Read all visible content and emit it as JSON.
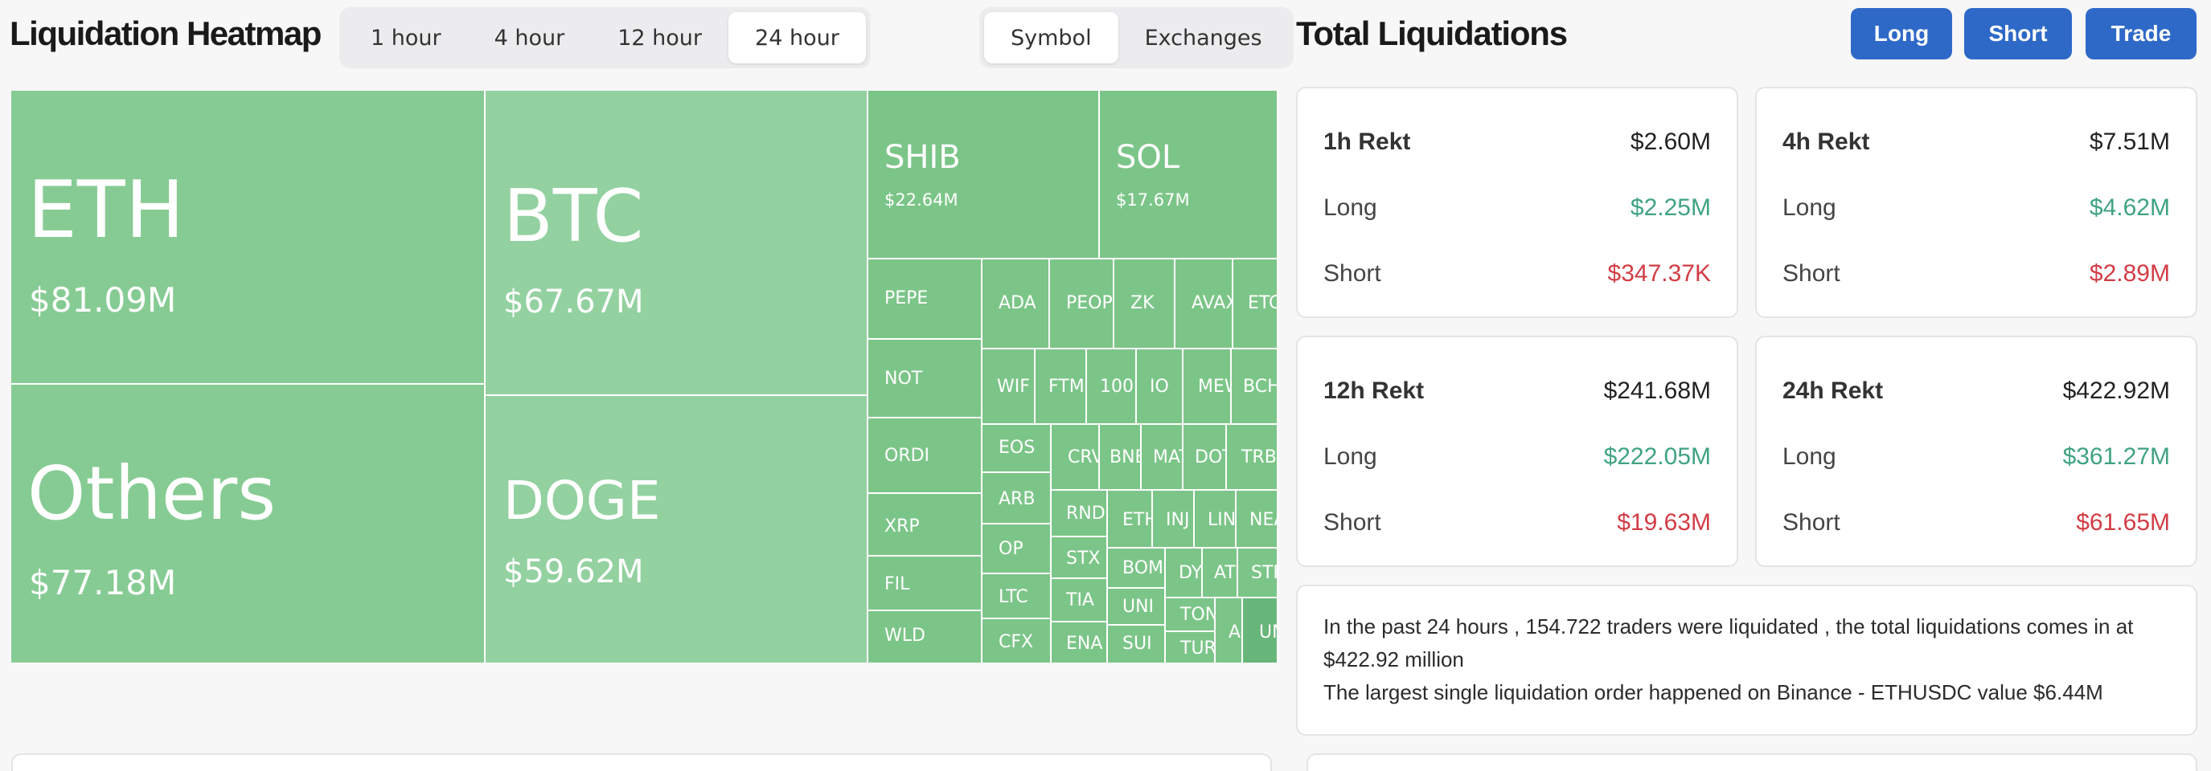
{
  "heatmap": {
    "title": "Liquidation Heatmap",
    "time_tabs": [
      "1 hour",
      "4 hour",
      "12 hour",
      "24 hour"
    ],
    "active_time_tab": "24 hour",
    "view_tabs": [
      "Symbol",
      "Exchanges"
    ],
    "active_view_tab": "Symbol",
    "tiles": [
      {
        "symbol": "ETH",
        "value": "$81.09M"
      },
      {
        "symbol": "Others",
        "value": "$77.18M"
      },
      {
        "symbol": "BTC",
        "value": "$67.67M"
      },
      {
        "symbol": "DOGE",
        "value": "$59.62M"
      },
      {
        "symbol": "SHIB",
        "value": "$22.64M"
      },
      {
        "symbol": "SOL",
        "value": "$17.67M"
      },
      {
        "symbol": "PEPE"
      },
      {
        "symbol": "NOT"
      },
      {
        "symbol": "ORDI"
      },
      {
        "symbol": "XRP"
      },
      {
        "symbol": "FIL"
      },
      {
        "symbol": "WLD"
      },
      {
        "symbol": "ADA"
      },
      {
        "symbol": "PEOP"
      },
      {
        "symbol": "ZK"
      },
      {
        "symbol": "AVAX"
      },
      {
        "symbol": "ETC"
      },
      {
        "symbol": "WIF"
      },
      {
        "symbol": "FTM"
      },
      {
        "symbol": "100"
      },
      {
        "symbol": "IO"
      },
      {
        "symbol": "MEW"
      },
      {
        "symbol": "BCH"
      },
      {
        "symbol": "EOS"
      },
      {
        "symbol": "ARB"
      },
      {
        "symbol": "OP"
      },
      {
        "symbol": "LTC"
      },
      {
        "symbol": "CFX"
      },
      {
        "symbol": "CRV"
      },
      {
        "symbol": "BNB"
      },
      {
        "symbol": "MATIC"
      },
      {
        "symbol": "DOT"
      },
      {
        "symbol": "TRB"
      },
      {
        "symbol": "RNDR"
      },
      {
        "symbol": "STX"
      },
      {
        "symbol": "TIA"
      },
      {
        "symbol": "ENA"
      },
      {
        "symbol": "ETH"
      },
      {
        "symbol": "INJ"
      },
      {
        "symbol": "LINK"
      },
      {
        "symbol": "NEAR"
      },
      {
        "symbol": "BOME"
      },
      {
        "symbol": "UNI"
      },
      {
        "symbol": "SUI"
      },
      {
        "symbol": "DYM"
      },
      {
        "symbol": "ATOM"
      },
      {
        "symbol": "STRK"
      },
      {
        "symbol": "TON"
      },
      {
        "symbol": "TURBO"
      },
      {
        "symbol": "APT"
      },
      {
        "symbol": "UMA"
      }
    ]
  },
  "totals": {
    "title": "Total Liquidations",
    "buttons": {
      "long": "Long",
      "short": "Short",
      "trade": "Trade"
    },
    "cards": [
      {
        "title": "1h Rekt",
        "total": "$2.60M",
        "long_label": "Long",
        "long": "$2.25M",
        "short_label": "Short",
        "short": "$347.37K"
      },
      {
        "title": "4h Rekt",
        "total": "$7.51M",
        "long_label": "Long",
        "long": "$4.62M",
        "short_label": "Short",
        "short": "$2.89M"
      },
      {
        "title": "12h Rekt",
        "total": "$241.68M",
        "long_label": "Long",
        "long": "$222.05M",
        "short_label": "Short",
        "short": "$19.63M"
      },
      {
        "title": "24h Rekt",
        "total": "$422.92M",
        "long_label": "Long",
        "long": "$361.27M",
        "short_label": "Short",
        "short": "$61.65M"
      }
    ],
    "summary_line1": "In the past 24 hours , 154.722 traders were liquidated , the total liquidations comes in at $422.92 million",
    "summary_line2": "The largest single liquidation order happened on Binance - ETHUSDC value $6.44M"
  },
  "colors": {
    "tile_light": "#93d1a0",
    "tile_mid": "#86cb93",
    "tile_dark": "#7cc588",
    "tile_darker": "#68b67a",
    "accent_blue": "#2e69c8",
    "green": "#3fa37f",
    "red": "#d23c45"
  }
}
